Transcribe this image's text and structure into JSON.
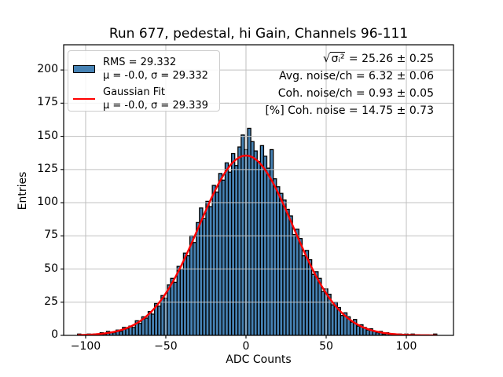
{
  "title": "Run 677, pedestal, hi Gain, Channels 96-111",
  "axes": {
    "xlabel": "ADC Counts",
    "ylabel": "Entries",
    "xtick_labels": [
      "−100",
      "−50",
      "0",
      "50",
      "100"
    ],
    "ytick_labels": [
      "0",
      "25",
      "50",
      "75",
      "100",
      "125",
      "150",
      "175",
      "200"
    ]
  },
  "legend": {
    "hist_label_line1": "RMS = 29.332",
    "hist_label_line2": "μ = -0.0, σ = 29.332",
    "fit_label_line1": "Gaussian Fit",
    "fit_label_line2": "μ = -0.0, σ = 29.339"
  },
  "stats": {
    "line1_sqrt_sign": "√",
    "line1_radicand": "σᵢ²",
    "line1_rest": " = 25.26 ± 0.25",
    "line2": "Avg. noise/ch = 6.32 ± 0.06",
    "line3": "Coh. noise/ch = 0.93 ± 0.05",
    "line4": "[%] Coh. noise = 14.75 ± 0.73"
  },
  "colors": {
    "hist_fill": "#4682b4",
    "hist_edge": "#000000",
    "fit_line": "#ff0000",
    "grid": "#c0c0c0",
    "frame": "#000000",
    "legend_border": "#cccccc"
  },
  "chart_data": {
    "type": "bar",
    "subtype": "histogram",
    "title": "Run 677, pedestal, hi Gain, Channels 96-111",
    "xlabel": "ADC Counts",
    "ylabel": "Entries",
    "grid": true,
    "legend_position": "upper left",
    "xlim": [
      -113.7,
      129.4
    ],
    "ylim": [
      0,
      219
    ],
    "xticks": [
      -100,
      -50,
      0,
      50,
      100
    ],
    "yticks": [
      0,
      25,
      50,
      75,
      100,
      125,
      150,
      175,
      200
    ],
    "bin_width": 2,
    "first_bin_center": -104,
    "counts": [
      1,
      0,
      0,
      1,
      0,
      1,
      1,
      2,
      1,
      3,
      2,
      2,
      4,
      3,
      6,
      5,
      7,
      6,
      11,
      9,
      14,
      13,
      18,
      16,
      24,
      22,
      30,
      28,
      38,
      43,
      40,
      52,
      50,
      62,
      60,
      75,
      70,
      85,
      96,
      88,
      101,
      97,
      113,
      108,
      122,
      117,
      130,
      123,
      137,
      128,
      142,
      151,
      140,
      156,
      146,
      139,
      131,
      143,
      135,
      126,
      140,
      118,
      112,
      107,
      102,
      95,
      90,
      76,
      80,
      73,
      60,
      64,
      57,
      46,
      48,
      43,
      33,
      35,
      31,
      23,
      25,
      21,
      15,
      17,
      14,
      10,
      12,
      7,
      8,
      6,
      4,
      5,
      3,
      2,
      3,
      1,
      2,
      1,
      1,
      0,
      1,
      0,
      1,
      0,
      1,
      0,
      0,
      0,
      0,
      0,
      0,
      1
    ],
    "hist_stats": {
      "rms": 29.332,
      "mu": -0.0,
      "sigma": 29.332
    },
    "fit": {
      "type": "gaussian",
      "mu": -0.0,
      "sigma": 29.339,
      "peak": 135.5,
      "range": [
        -105,
        119
      ]
    },
    "annotations": [
      "sqrt(σ_i^2) = 25.26 ± 0.25",
      "Avg. noise/ch = 6.32 ± 0.06",
      "Coh. noise/ch = 0.93 ± 0.05",
      "[%] Coh. noise = 14.75 ± 0.73"
    ]
  }
}
